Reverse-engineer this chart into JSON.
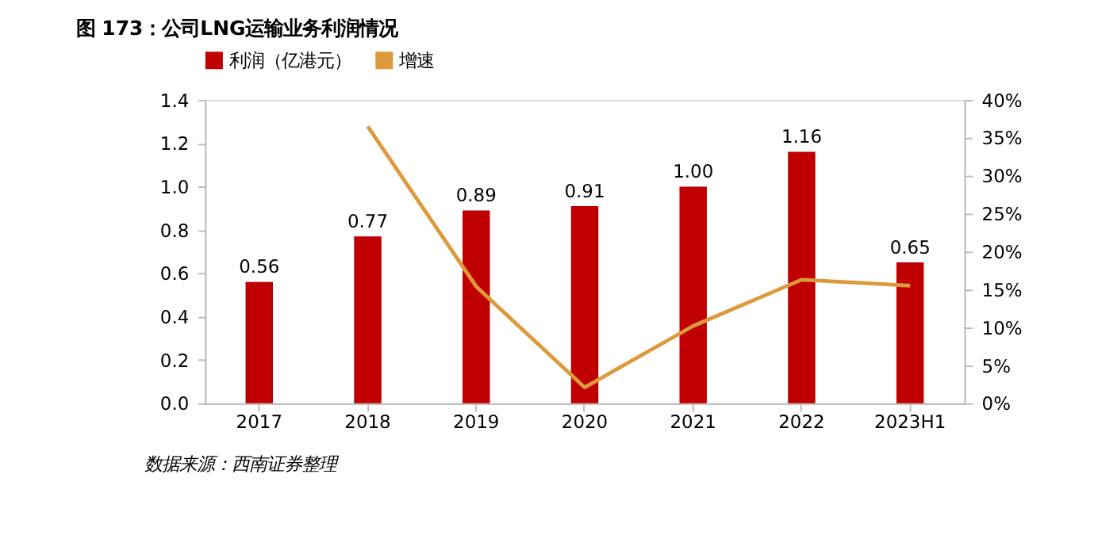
{
  "chart_data": {
    "type": "bar",
    "title": "图 173：公司LNG运输业务利润情况",
    "categories": [
      "2017",
      "2018",
      "2019",
      "2020",
      "2021",
      "2022",
      "2023H1"
    ],
    "series": [
      {
        "name": "利润（亿港元）",
        "type": "bar",
        "color": "#c00000",
        "values": [
          0.56,
          0.77,
          0.89,
          0.91,
          1.0,
          1.16,
          0.65
        ],
        "value_labels": [
          "0.56",
          "0.77",
          "0.89",
          "0.91",
          "1.00",
          "1.16",
          "0.65"
        ]
      },
      {
        "name": "增速",
        "type": "line",
        "axis": "y2",
        "color": "#dd9a3c",
        "values": [
          null,
          36.5,
          15.4,
          2.1,
          10.2,
          16.3,
          15.5
        ]
      }
    ],
    "ylim": [
      0,
      1.4
    ],
    "yticks": [
      {
        "value": 0,
        "label": "0.0"
      },
      {
        "value": 0.2,
        "label": "0.2"
      },
      {
        "value": 0.4,
        "label": "0.4"
      },
      {
        "value": 0.6,
        "label": "0.6"
      },
      {
        "value": 0.8,
        "label": "0.8"
      },
      {
        "value": 1.0,
        "label": "1.0"
      },
      {
        "value": 1.2,
        "label": "1.2"
      },
      {
        "value": 1.4,
        "label": "1.4"
      }
    ],
    "y2lim": [
      0,
      40
    ],
    "y2ticks": [
      {
        "value": 0,
        "label": "0%"
      },
      {
        "value": 5,
        "label": "5%"
      },
      {
        "value": 10,
        "label": "10%"
      },
      {
        "value": 15,
        "label": "15%"
      },
      {
        "value": 20,
        "label": "20%"
      },
      {
        "value": 25,
        "label": "25%"
      },
      {
        "value": 30,
        "label": "30%"
      },
      {
        "value": 35,
        "label": "35%"
      },
      {
        "value": 40,
        "label": "40%"
      }
    ],
    "grid": false,
    "legend": "top",
    "annotations": [
      "数据来源：西南证券整理"
    ]
  }
}
